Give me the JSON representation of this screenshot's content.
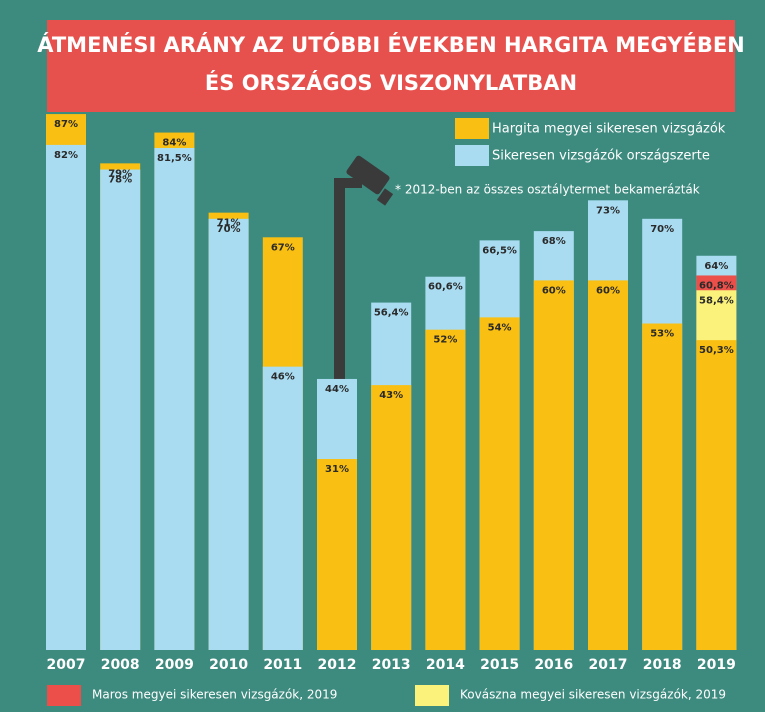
{
  "chart_data": {
    "type": "overlap-bar",
    "title": [
      "ÁTMENÉSI ARÁNY AZ UTÓBBI ÉVEKBEN HARGITA MEGYÉBEN",
      "ÉS ORSZÁGOS VISZONYLATBAN"
    ],
    "annotation": "* 2012-ben az összes osztálytermet bekamerázták",
    "categories": [
      "2007",
      "2008",
      "2009",
      "2010",
      "2011",
      "2012",
      "2013",
      "2014",
      "2015",
      "2016",
      "2017",
      "2018",
      "2019"
    ],
    "ylim": [
      0,
      100
    ],
    "series": [
      {
        "name": "Hargita megyei sikeresen vizsgázók",
        "color": "#f9bf12",
        "values": [
          87,
          79,
          84,
          71,
          67,
          31,
          43,
          52,
          54,
          60,
          60,
          53,
          50.3
        ],
        "value_labels": [
          "87%",
          "79%",
          "84%",
          "71%",
          "67%",
          "31%",
          "43%",
          "52%",
          "54%",
          "60%",
          "60%",
          "53%",
          "50,3%"
        ]
      },
      {
        "name": "Sikeresen vizsgázók országszerte",
        "color": "#a9dcf1",
        "values": [
          82,
          78,
          81.5,
          70,
          46,
          44,
          56.4,
          60.6,
          66.5,
          68,
          73,
          70,
          64
        ],
        "value_labels": [
          "82%",
          "78%",
          "81,5%",
          "70%",
          "46%",
          "44%",
          "56,4%",
          "60,6%",
          "66,5%",
          "68%",
          "73%",
          "70%",
          "64%"
        ]
      },
      {
        "name": "Maros megyei sikeresen vizsgázók, 2019",
        "color": "#ec4f4a",
        "values": [
          null,
          null,
          null,
          null,
          null,
          null,
          null,
          null,
          null,
          null,
          null,
          null,
          60.8
        ],
        "value_labels": [
          null,
          null,
          null,
          null,
          null,
          null,
          null,
          null,
          null,
          null,
          null,
          null,
          "60,8%"
        ]
      },
      {
        "name": "Kovászna megyei sikeresen vizsgázók, 2019",
        "color": "#fbf27c",
        "values": [
          null,
          null,
          null,
          null,
          null,
          null,
          null,
          null,
          null,
          null,
          null,
          null,
          58.4
        ],
        "value_labels": [
          null,
          null,
          null,
          null,
          null,
          null,
          null,
          null,
          null,
          null,
          null,
          null,
          "58,4%"
        ]
      }
    ]
  }
}
